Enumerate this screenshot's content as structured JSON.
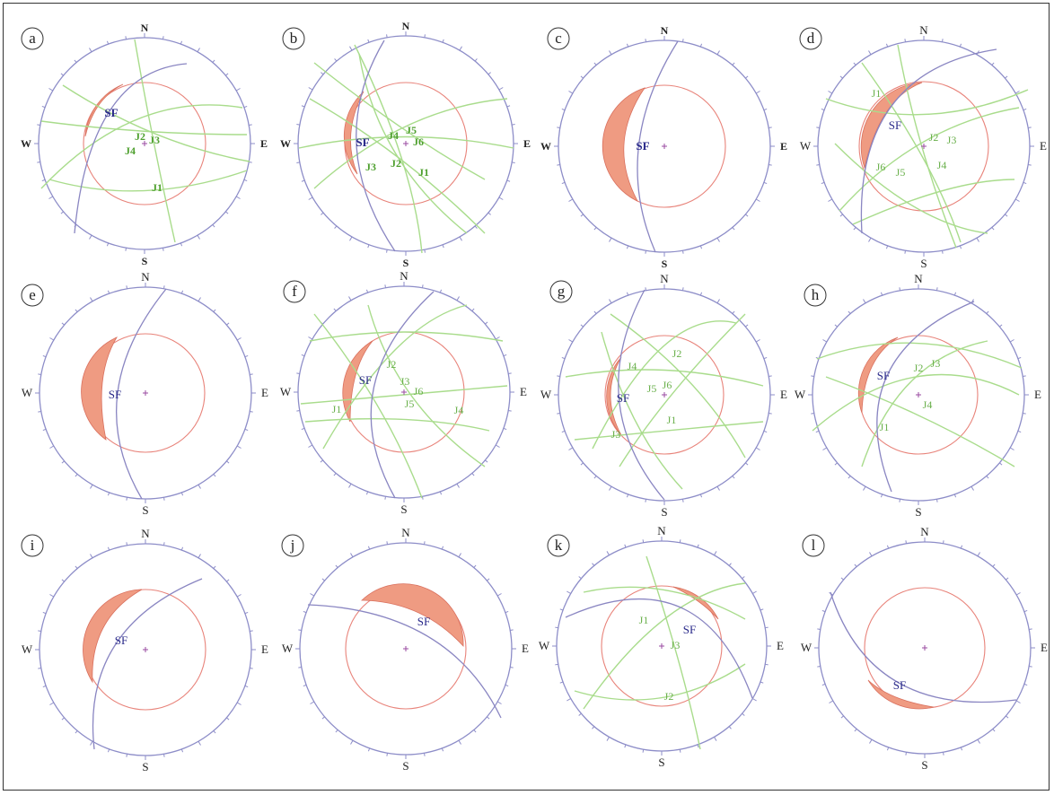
{
  "cardinals": {
    "n": "N",
    "s": "S",
    "e": "E",
    "w": "W"
  },
  "colors": {
    "primitive": "#8d8dc8",
    "sliding_face": "#8a86c2",
    "friction_circle": "#e8837a",
    "wedge_fill": "#ef9b82",
    "joint": "#a9dc8c",
    "joint_label": "#6ab04c",
    "sf_label": "#2a2a8a",
    "center": "#9a4aa0"
  },
  "panels": [
    {
      "label": "a",
      "sf_label": "SF",
      "joint_labels": [
        "J2",
        "J3",
        "J4",
        "J1"
      ]
    },
    {
      "label": "b",
      "sf_label": "SF",
      "joint_labels": [
        "J5",
        "J4",
        "J6",
        "J3",
        "J2",
        "J1"
      ]
    },
    {
      "label": "c",
      "sf_label": "SF",
      "joint_labels": []
    },
    {
      "label": "d",
      "sf_label": "SF",
      "joint_labels": [
        "J1",
        "J2",
        "J3",
        "J4",
        "J6",
        "J5"
      ]
    },
    {
      "label": "e",
      "sf_label": "SF",
      "joint_labels": []
    },
    {
      "label": "f",
      "sf_label": "SF",
      "joint_labels": [
        "J2",
        "J3",
        "J6",
        "J5",
        "J1",
        "J4"
      ]
    },
    {
      "label": "g",
      "sf_label": "SF",
      "joint_labels": [
        "J2",
        "J4",
        "J5",
        "J6",
        "J1",
        "J3"
      ]
    },
    {
      "label": "h",
      "sf_label": "SF",
      "joint_labels": [
        "J3",
        "J2",
        "J4",
        "J1"
      ]
    },
    {
      "label": "i",
      "sf_label": "SF",
      "joint_labels": []
    },
    {
      "label": "j",
      "sf_label": "SF",
      "joint_labels": []
    },
    {
      "label": "k",
      "sf_label": "SF",
      "joint_labels": [
        "J1",
        "J3",
        "J2"
      ]
    },
    {
      "label": "l",
      "sf_label": "SF",
      "joint_labels": []
    }
  ]
}
